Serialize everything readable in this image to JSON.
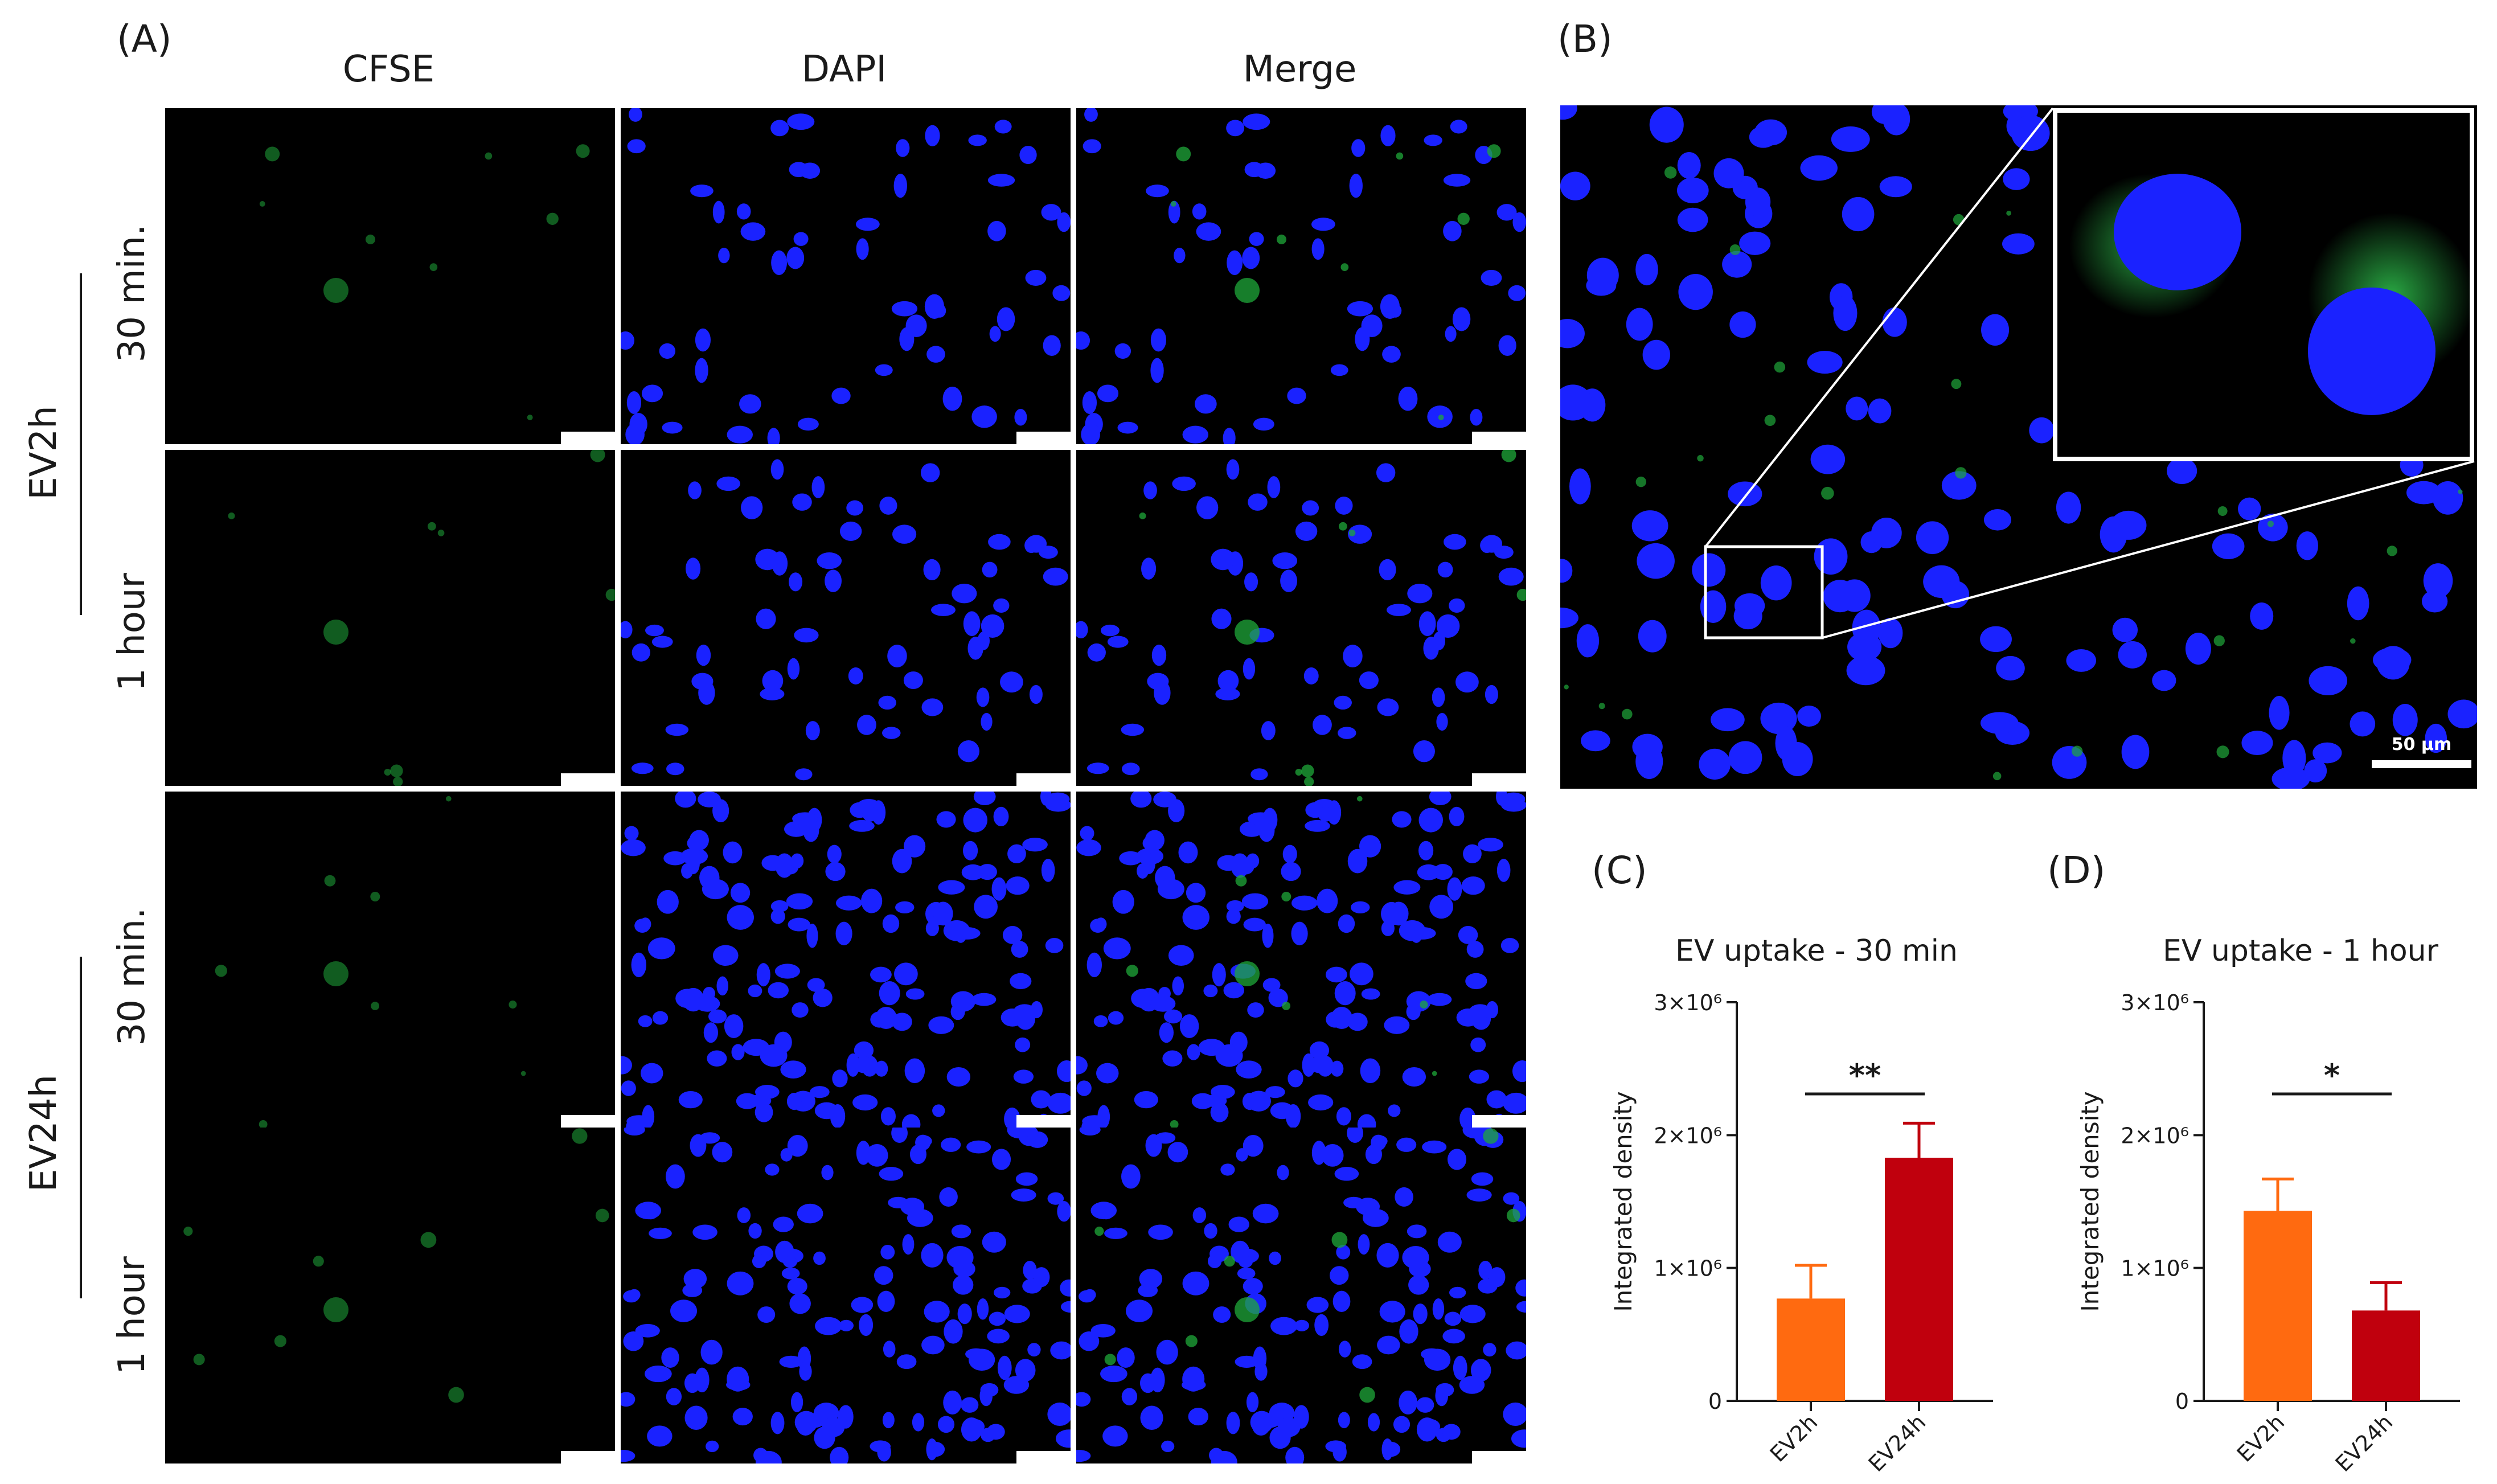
{
  "panel_labels": {
    "A": "(A)",
    "B": "(B)",
    "C": "(C)",
    "D": "(D)"
  },
  "columns": [
    "CFSE",
    "DAPI",
    "Merge"
  ],
  "groups": [
    {
      "label": "EV2h",
      "rows": [
        "30 min.",
        "1 hour"
      ]
    },
    {
      "label": "EV24h",
      "rows": [
        "30 min.",
        "1 hour"
      ]
    }
  ],
  "scale_bar_label": "50 μm",
  "colors": {
    "nucleus": "#1a22ff",
    "cfse": "#1fa83a",
    "ev2h_bar": "#ff6a10",
    "ev24h_bar": "#c0000d",
    "error_ev2h": "#ff6a10",
    "error_ev24h": "#c0000d"
  },
  "chart_data": [
    {
      "type": "bar",
      "title": "EV uptake - 30 min",
      "ylabel": "Integrated density",
      "categories": [
        "EV2h",
        "EV24h"
      ],
      "values": [
        770000,
        1830000
      ],
      "errors": [
        250000,
        260000
      ],
      "ylim": [
        0,
        3000000
      ],
      "yticks": [
        "0",
        "1×10⁶",
        "2×10⁶",
        "3×10⁶"
      ],
      "significance": "**"
    },
    {
      "type": "bar",
      "title": "EV uptake - 1 hour",
      "ylabel": "Integrated density",
      "categories": [
        "EV2h",
        "EV24h"
      ],
      "values": [
        1430000,
        680000
      ],
      "errors": [
        240000,
        210000
      ],
      "ylim": [
        0,
        3000000
      ],
      "yticks": [
        "0",
        "1×10⁶",
        "2×10⁶",
        "3×10⁶"
      ],
      "significance": "*"
    }
  ]
}
